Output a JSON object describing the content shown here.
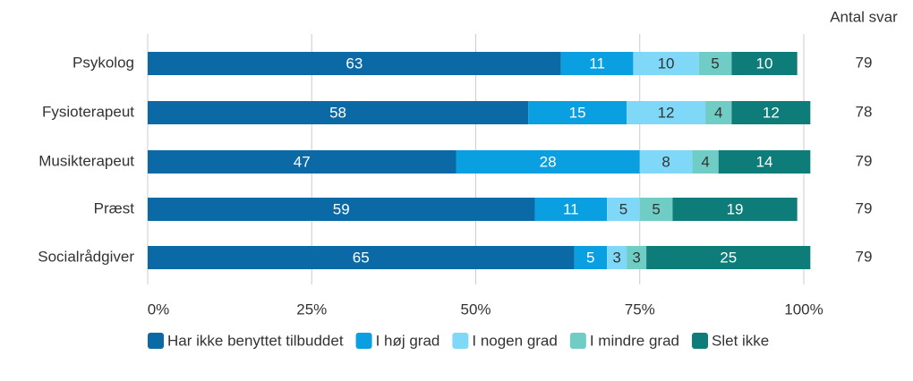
{
  "chart_data": {
    "type": "stacked_bar_horizontal",
    "categories": [
      "Psykolog",
      "Fysioterapeut",
      "Musikterapeut",
      "Præst",
      "Socialrådgiver"
    ],
    "series": [
      {
        "name": "Har ikke benyttet tilbuddet",
        "color": "#0b6aa6",
        "label_color": "#ffffff",
        "values": [
          63,
          58,
          47,
          59,
          65
        ]
      },
      {
        "name": "I høj grad",
        "color": "#0a9fe0",
        "label_color": "#ffffff",
        "values": [
          11,
          15,
          28,
          11,
          5
        ]
      },
      {
        "name": "I nogen grad",
        "color": "#80d8f8",
        "label_color": "#333333",
        "values": [
          10,
          12,
          8,
          5,
          3
        ]
      },
      {
        "name": "I mindre grad",
        "color": "#6fcdc6",
        "label_color": "#333333",
        "values": [
          5,
          4,
          4,
          5,
          3
        ]
      },
      {
        "name": "Slet ikke",
        "color": "#0e7c78",
        "label_color": "#ffffff",
        "values": [
          10,
          12,
          14,
          19,
          25
        ]
      }
    ],
    "xlim": [
      0,
      100
    ],
    "xticks": [
      {
        "value": 0,
        "label": "0%"
      },
      {
        "value": 25,
        "label": "25%"
      },
      {
        "value": 50,
        "label": "50%"
      },
      {
        "value": 75,
        "label": "75%"
      },
      {
        "value": 100,
        "label": "100%"
      }
    ],
    "grid": true,
    "count_label": "Antal svar",
    "counts": [
      79,
      78,
      79,
      79,
      79
    ]
  }
}
